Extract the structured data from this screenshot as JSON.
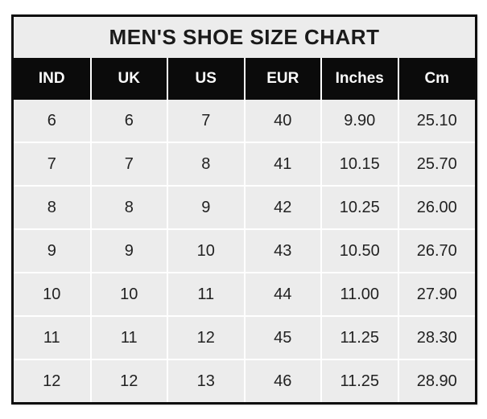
{
  "title": "MEN'S SHOE SIZE CHART",
  "colors": {
    "page_bg": "#ffffff",
    "card_bg": "#ececec",
    "border": "#0d0d0d",
    "header_bg": "#0b0b0b",
    "header_text": "#fafafa",
    "title_text": "#1a1a1a",
    "body_text": "#222222",
    "gridline": "#ffffff"
  },
  "table": {
    "columns": [
      "IND",
      "UK",
      "US",
      "EUR",
      "Inches",
      "Cm"
    ],
    "rows": [
      [
        "6",
        "6",
        "7",
        "40",
        "9.90",
        "25.10"
      ],
      [
        "7",
        "7",
        "8",
        "41",
        "10.15",
        "25.70"
      ],
      [
        "8",
        "8",
        "9",
        "42",
        "10.25",
        "26.00"
      ],
      [
        "9",
        "9",
        "10",
        "43",
        "10.50",
        "26.70"
      ],
      [
        "10",
        "10",
        "11",
        "44",
        "11.00",
        "27.90"
      ],
      [
        "11",
        "11",
        "12",
        "45",
        "11.25",
        "28.30"
      ],
      [
        "12",
        "12",
        "13",
        "46",
        "11.25",
        "28.90"
      ]
    ]
  },
  "chart_data": {
    "type": "table",
    "title": "MEN'S SHOE SIZE CHART",
    "columns": [
      "IND",
      "UK",
      "US",
      "EUR",
      "Inches",
      "Cm"
    ],
    "rows": [
      [
        6,
        6,
        7,
        40,
        9.9,
        25.1
      ],
      [
        7,
        7,
        8,
        41,
        10.15,
        25.7
      ],
      [
        8,
        8,
        9,
        42,
        10.25,
        26.0
      ],
      [
        9,
        9,
        10,
        43,
        10.5,
        26.7
      ],
      [
        10,
        10,
        11,
        44,
        11.0,
        27.9
      ],
      [
        11,
        11,
        12,
        45,
        11.25,
        28.3
      ],
      [
        12,
        12,
        13,
        46,
        11.25,
        28.9
      ]
    ]
  }
}
